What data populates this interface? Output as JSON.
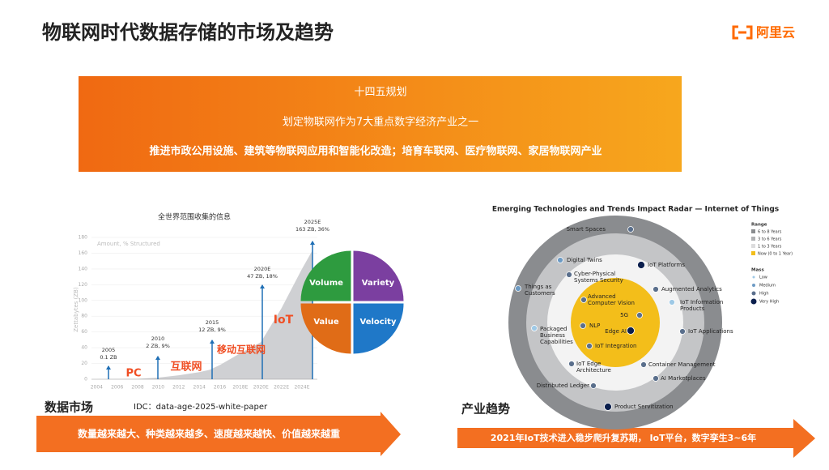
{
  "slide": {
    "title": "物联网时代数据存储的市场及趋势",
    "logo": "阿里云",
    "banner": {
      "heading": "十四五规划",
      "line1": "划定物联网作为7大重点数字经济产业之一",
      "line2": "推进市政公用设施、建筑等物联网应用和智能化改造；培育车联网、医疗物联网、家居物联网产业"
    },
    "quadrants": [
      "Volume",
      "Variety",
      "Value",
      "Velocity"
    ],
    "left_label": "数据市场",
    "source": "IDC：data-age-2025-white-paper",
    "left_arrow": "数量越来越大、种类越来越多、速度越来越快、价值越来越重",
    "right_label": "产业趋势",
    "right_arrow": "2021年IoT技术进入稳步爬升复苏期， IoT平台，数字孪生3~6年",
    "radar": {
      "title": "Emerging Technologies and Trends Impact Radar — Internet of Things",
      "items": [
        [
          "Smart Spaces"
        ],
        [
          "Digital Twins"
        ],
        [
          "IoT Platforms"
        ],
        [
          "Cyber-Physical",
          "Systems Security"
        ],
        [
          "Things as",
          "Customers"
        ],
        [
          "Augmented Analytics"
        ],
        [
          "Advanced",
          "Computer Vision"
        ],
        [
          "IoT Information",
          "Products"
        ],
        [
          "5G"
        ],
        [
          "Packaged",
          "Business",
          "Capabilities"
        ],
        [
          "NLP"
        ],
        [
          "Edge AI"
        ],
        [
          "IoT Applications"
        ],
        [
          "IoT Integration"
        ],
        [
          "IoT Edge",
          "Architecture"
        ],
        [
          "Container Management"
        ],
        [
          "AI Marketplaces"
        ],
        [
          "Distributed Ledger"
        ],
        [
          "Product Servitization"
        ]
      ],
      "range_title": "Range",
      "ranges": [
        "6 to 8 Years",
        "3 to 6 Years",
        "1 to 3 Years",
        "Now (0 to 1 Year)"
      ],
      "mass_title": "Mass",
      "masses": [
        "Low",
        "Medium",
        "High",
        "Very High"
      ]
    }
  },
  "chart_data": {
    "type": "area",
    "title": "全世界范围收集的信息",
    "y_label": "Zettabytes (ZB)",
    "x": [
      2004,
      2005,
      2006,
      2008,
      2010,
      2012,
      2014,
      2015,
      2016,
      2018,
      2020,
      2022,
      2024,
      2025
    ],
    "series": [
      {
        "name": "Amount, % Structured",
        "color": "#cfd0d3",
        "values": [
          0.05,
          0.1,
          0.2,
          0.5,
          2,
          5,
          9,
          12,
          18,
          33,
          47,
          90,
          140,
          163
        ]
      }
    ],
    "xlim": [
      2003.5,
      2025.5
    ],
    "xticks": [
      2004,
      2006,
      2008,
      2010,
      2012,
      2014,
      2016,
      {
        "value": 2018,
        "label": "2018E"
      },
      {
        "value": 2020,
        "label": "2020E"
      },
      {
        "value": 2022,
        "label": "2022E"
      },
      {
        "value": 2024,
        "label": "2024E"
      }
    ],
    "ylim": [
      0,
      180
    ],
    "yticks": [
      0,
      20,
      40,
      60,
      80,
      100,
      120,
      140,
      160,
      180
    ],
    "annotations": [
      [
        "2005",
        "0.1 ZB"
      ],
      [
        "2010",
        "2 ZB, 9%"
      ],
      [
        "2015",
        "12 ZB, 9%"
      ],
      [
        "2020E",
        "47 ZB, 18%"
      ],
      [
        "2025E",
        "163 ZB, 36%"
      ]
    ],
    "eras": [
      "PC",
      "互联网",
      "移动互联网",
      "IoT"
    ]
  }
}
